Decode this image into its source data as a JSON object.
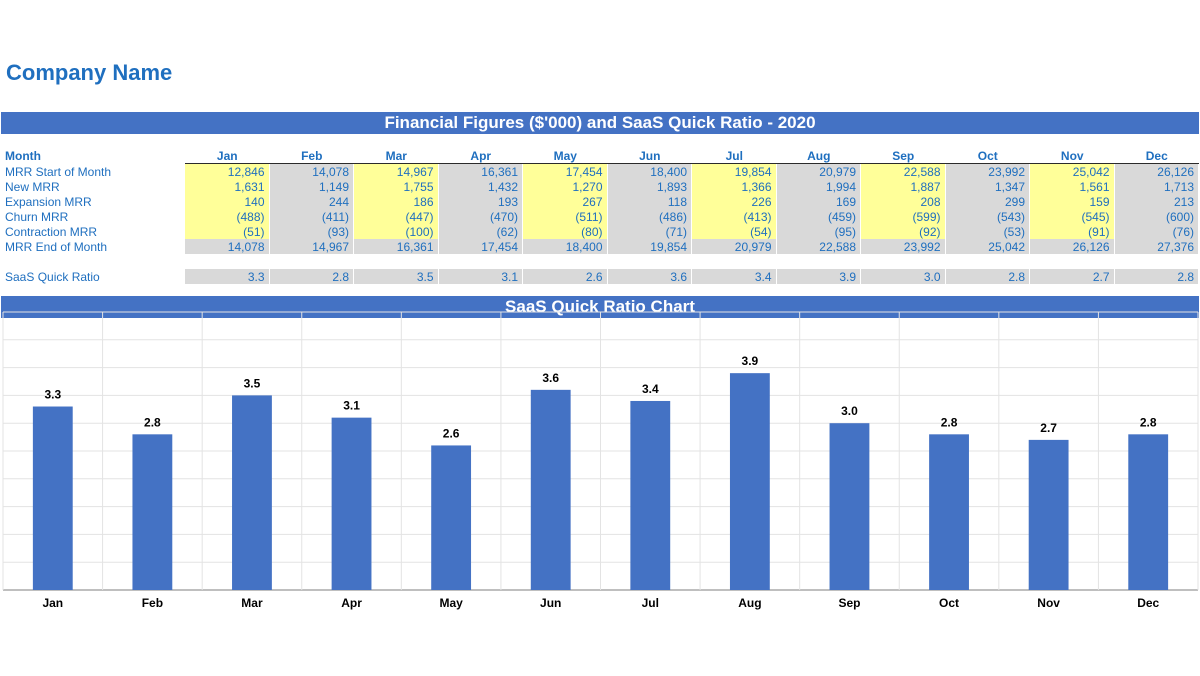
{
  "company": "Company Name",
  "table": {
    "title": "Financial Figures ($'000) and SaaS Quick Ratio - 2020",
    "month_header": "Month",
    "months": [
      "Jan",
      "Feb",
      "Mar",
      "Apr",
      "May",
      "Jun",
      "Jul",
      "Aug",
      "Sep",
      "Oct",
      "Nov",
      "Dec"
    ],
    "rows": [
      {
        "label": "MRR Start of Month",
        "style": "yellow",
        "values": [
          "12,846",
          "14,078",
          "14,967",
          "16,361",
          "17,454",
          "18,400",
          "19,854",
          "20,979",
          "22,588",
          "23,992",
          "25,042",
          "26,126"
        ]
      },
      {
        "label": "New MRR",
        "style": "yellow",
        "values": [
          "1,631",
          "1,149",
          "1,755",
          "1,432",
          "1,270",
          "1,893",
          "1,366",
          "1,994",
          "1,887",
          "1,347",
          "1,561",
          "1,713"
        ]
      },
      {
        "label": "Expansion MRR",
        "style": "yellow",
        "values": [
          "140",
          "244",
          "186",
          "193",
          "267",
          "118",
          "226",
          "169",
          "208",
          "299",
          "159",
          "213"
        ]
      },
      {
        "label": "Churn MRR",
        "style": "yellow",
        "values": [
          "(488)",
          "(411)",
          "(447)",
          "(470)",
          "(511)",
          "(486)",
          "(413)",
          "(459)",
          "(599)",
          "(543)",
          "(545)",
          "(600)"
        ]
      },
      {
        "label": "Contraction MRR",
        "style": "yellow",
        "values": [
          "(51)",
          "(93)",
          "(100)",
          "(62)",
          "(80)",
          "(71)",
          "(54)",
          "(95)",
          "(92)",
          "(53)",
          "(91)",
          "(76)"
        ]
      },
      {
        "label": "MRR End of Month",
        "style": "grey",
        "values": [
          "14,078",
          "14,967",
          "16,361",
          "17,454",
          "18,400",
          "19,854",
          "20,979",
          "22,588",
          "23,992",
          "25,042",
          "26,126",
          "27,376"
        ]
      }
    ],
    "ratio_row": {
      "label": "SaaS Quick Ratio",
      "values": [
        "3.3",
        "2.8",
        "3.5",
        "3.1",
        "2.6",
        "3.6",
        "3.4",
        "3.9",
        "3.0",
        "2.8",
        "2.7",
        "2.8"
      ]
    }
  },
  "chart_title": "SaaS Quick Ratio Chart",
  "chart_data": {
    "type": "bar",
    "title": "SaaS Quick Ratio Chart",
    "categories": [
      "Jan",
      "Feb",
      "Mar",
      "Apr",
      "May",
      "Jun",
      "Jul",
      "Aug",
      "Sep",
      "Oct",
      "Nov",
      "Dec"
    ],
    "values": [
      3.3,
      2.8,
      3.5,
      3.1,
      2.6,
      3.6,
      3.4,
      3.9,
      3.0,
      2.8,
      2.7,
      2.8
    ],
    "data_labels": [
      "3.3",
      "2.8",
      "3.5",
      "3.1",
      "2.6",
      "3.6",
      "3.4",
      "3.9",
      "3.0",
      "2.8",
      "2.7",
      "2.8"
    ],
    "ylim": [
      0,
      5
    ],
    "grid": true,
    "bar_color": "#4472c4",
    "xlabel": "",
    "ylabel": ""
  },
  "colors": {
    "banner": "#4472c4",
    "text_blue": "#1f6fbf",
    "input_yellow": "#ffff99",
    "calc_grey": "#d9d9d9"
  }
}
